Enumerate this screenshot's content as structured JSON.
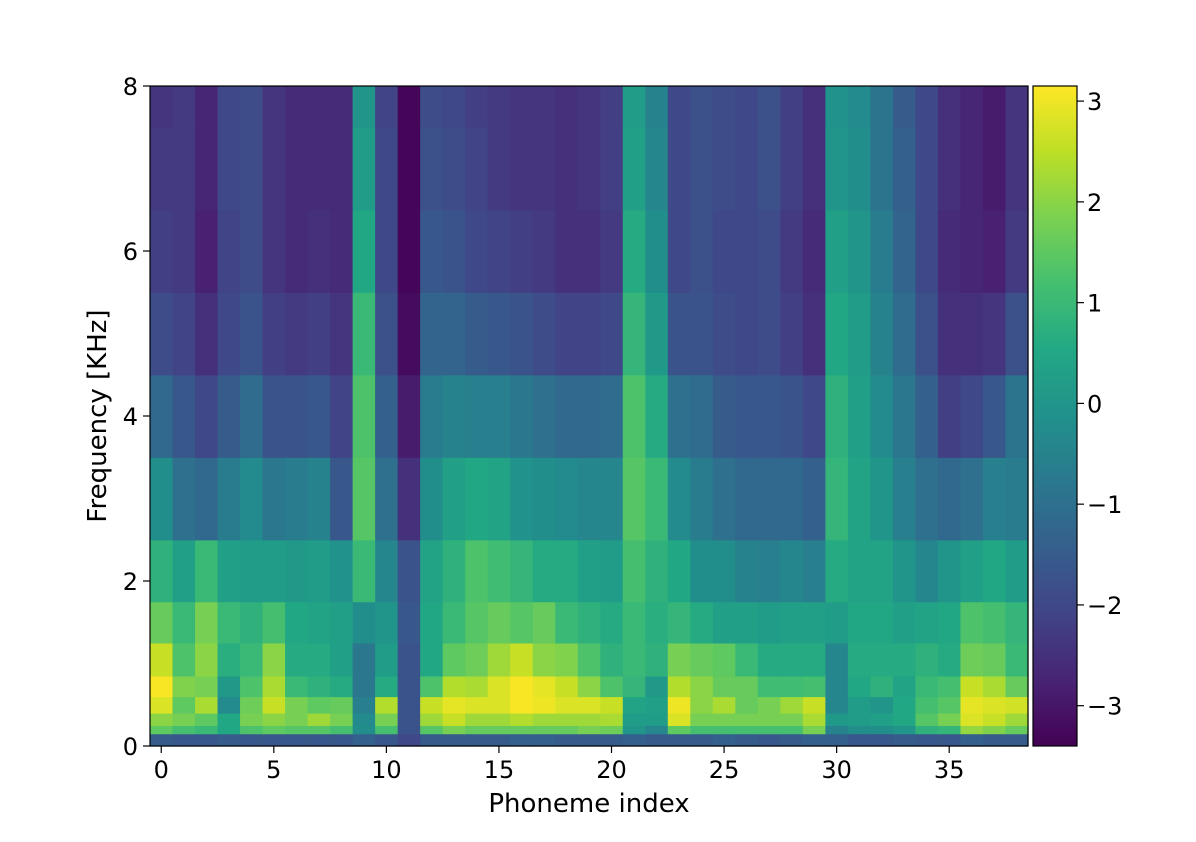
{
  "chart_data": {
    "type": "heatmap",
    "xlabel": "Phoneme index",
    "ylabel": "Frequency [KHz]",
    "x_range": [
      -0.5,
      38.5
    ],
    "y_range": [
      0,
      8
    ],
    "x_ticks": [
      0,
      5,
      10,
      15,
      20,
      25,
      30,
      35
    ],
    "x_tick_labels": [
      "0",
      "5",
      "10",
      "15",
      "20",
      "25",
      "30",
      "35"
    ],
    "y_ticks": [
      0,
      2,
      4,
      6,
      8
    ],
    "y_tick_labels": [
      "0",
      "2",
      "4",
      "6",
      "8"
    ],
    "colorbar": {
      "colormap": "viridis",
      "range": [
        -3.4,
        3.15
      ],
      "ticks": [
        -3,
        -2,
        -1,
        0,
        1,
        2,
        3
      ],
      "tick_labels": [
        "−3",
        "−2",
        "−1",
        "0",
        "1",
        "2",
        "3"
      ]
    },
    "grid": false,
    "phoneme_index": [
      0,
      1,
      2,
      3,
      4,
      5,
      6,
      7,
      8,
      9,
      10,
      11,
      12,
      13,
      14,
      15,
      16,
      17,
      18,
      19,
      20,
      21,
      22,
      23,
      24,
      25,
      26,
      27,
      28,
      29,
      30,
      31,
      32,
      33,
      34,
      35,
      36,
      37,
      38
    ],
    "frequency_rows_khz": [
      0.1,
      0.2,
      0.3,
      0.5,
      0.7,
      1.0,
      1.5,
      2.0,
      3.0,
      4.0,
      5.0,
      6.0,
      7.0,
      8.0
    ],
    "values": [
      [
        -1.5,
        -1.6,
        -1.6,
        -1.5,
        -1.6,
        -1.6,
        -1.6,
        -1.6,
        -1.6,
        -1.4,
        -1.6,
        -2.0,
        -1.5,
        -1.5,
        -1.5,
        -1.5,
        -1.4,
        -1.4,
        -1.5,
        -1.5,
        -1.5,
        -1.4,
        -1.5,
        -1.5,
        -1.5,
        -1.4,
        -1.5,
        -1.6,
        -1.5,
        -1.4,
        -1.4,
        -1.6,
        -1.6,
        -1.5,
        -1.6,
        -1.6,
        -1.4,
        -1.5,
        -1.5
      ],
      [
        1.5,
        1.2,
        1.0,
        0.5,
        1.3,
        1.5,
        1.4,
        1.4,
        1.2,
        -0.2,
        1.2,
        -1.7,
        1.4,
        1.8,
        1.6,
        1.6,
        1.6,
        1.6,
        1.6,
        1.8,
        1.7,
        0.0,
        -0.4,
        1.5,
        1.2,
        1.2,
        1.2,
        1.2,
        1.2,
        1.8,
        -0.5,
        -0.2,
        -0.2,
        0.0,
        0.8,
        0.9,
        2.1,
        1.9,
        1.6
      ],
      [
        2.0,
        1.8,
        1.5,
        0.5,
        1.8,
        2.0,
        1.8,
        2.2,
        1.8,
        -0.3,
        1.8,
        -1.7,
        2.2,
        2.6,
        2.2,
        2.2,
        2.4,
        2.2,
        2.2,
        2.2,
        2.3,
        0.2,
        0.2,
        2.8,
        1.8,
        1.8,
        1.8,
        1.8,
        1.8,
        2.3,
        0.1,
        0.2,
        0.3,
        0.5,
        1.4,
        1.8,
        2.8,
        2.6,
        2.2
      ],
      [
        2.8,
        1.5,
        2.3,
        -0.3,
        1.7,
        2.6,
        1.8,
        1.5,
        1.6,
        -0.6,
        2.4,
        -1.7,
        2.6,
        2.9,
        2.8,
        2.8,
        3.1,
        3.0,
        2.8,
        2.8,
        2.6,
        0.4,
        0.3,
        3.0,
        2.0,
        2.3,
        1.6,
        1.8,
        2.2,
        2.6,
        -0.4,
        0.2,
        0.0,
        0.5,
        1.2,
        1.4,
        2.9,
        2.8,
        2.7
      ],
      [
        3.1,
        1.9,
        1.8,
        0.1,
        1.3,
        2.3,
        1.0,
        0.8,
        0.6,
        -0.8,
        0.6,
        -1.7,
        1.3,
        2.4,
        2.3,
        2.8,
        3.1,
        2.9,
        2.6,
        2.0,
        1.3,
        0.9,
        0.1,
        2.4,
        2.0,
        1.6,
        1.6,
        1.1,
        1.1,
        1.2,
        -0.4,
        0.5,
        0.8,
        0.4,
        1.0,
        1.2,
        2.6,
        2.3,
        1.6
      ],
      [
        2.6,
        1.3,
        2.0,
        0.7,
        1.0,
        2.0,
        0.6,
        0.6,
        0.3,
        -0.8,
        0.2,
        -1.7,
        0.5,
        1.5,
        1.7,
        2.2,
        2.6,
        2.0,
        1.9,
        1.3,
        0.8,
        1.0,
        0.8,
        1.8,
        1.6,
        1.5,
        1.0,
        0.6,
        0.6,
        0.6,
        -0.4,
        0.6,
        0.6,
        0.6,
        0.8,
        0.6,
        1.7,
        1.6,
        1.0
      ],
      [
        1.6,
        1.0,
        1.8,
        1.0,
        0.8,
        1.2,
        0.5,
        0.4,
        0.3,
        -0.2,
        0.0,
        -1.6,
        0.5,
        1.0,
        1.4,
        1.6,
        1.4,
        1.6,
        1.0,
        0.8,
        0.6,
        1.0,
        0.7,
        0.9,
        0.6,
        0.3,
        0.3,
        0.2,
        0.3,
        0.3,
        0.2,
        0.5,
        0.5,
        0.3,
        0.4,
        0.5,
        1.3,
        1.2,
        0.9
      ],
      [
        0.8,
        0.3,
        1.0,
        0.3,
        0.2,
        0.2,
        0.1,
        0.2,
        -0.1,
        1.0,
        -0.4,
        -1.7,
        0.4,
        0.8,
        1.3,
        1.1,
        0.9,
        0.6,
        0.6,
        0.3,
        0.2,
        1.2,
        0.8,
        0.5,
        -0.2,
        -0.2,
        -0.5,
        -0.6,
        -0.4,
        -0.6,
        0.6,
        0.4,
        0.4,
        0.0,
        -0.4,
        0.0,
        0.3,
        0.5,
        0.2
      ],
      [
        -0.2,
        -1.0,
        -1.2,
        -0.7,
        -0.3,
        -0.8,
        -0.7,
        -0.5,
        -1.6,
        1.4,
        -1.0,
        -2.5,
        -0.2,
        0.3,
        0.5,
        0.4,
        -0.1,
        -0.2,
        -0.3,
        -0.4,
        -0.4,
        1.4,
        1.0,
        -0.3,
        -0.7,
        -1.0,
        -1.2,
        -1.2,
        -1.2,
        -1.4,
        0.9,
        0.4,
        0.0,
        -0.6,
        -1.0,
        -1.2,
        -1.0,
        -0.6,
        -0.7
      ],
      [
        -1.2,
        -1.6,
        -2.0,
        -1.5,
        -1.1,
        -1.7,
        -1.7,
        -1.6,
        -2.1,
        1.3,
        -1.4,
        -2.9,
        -0.7,
        -0.5,
        -0.6,
        -0.6,
        -0.8,
        -1.0,
        -1.2,
        -1.2,
        -1.1,
        1.3,
        0.6,
        -1.0,
        -1.1,
        -1.5,
        -1.6,
        -1.6,
        -1.7,
        -2.0,
        0.8,
        0.3,
        -0.3,
        -0.8,
        -1.4,
        -2.2,
        -2.0,
        -1.6,
        -0.9
      ],
      [
        -1.9,
        -2.1,
        -2.5,
        -2.0,
        -1.7,
        -2.2,
        -2.3,
        -2.2,
        -2.4,
        1.0,
        -1.8,
        -3.2,
        -1.3,
        -1.3,
        -1.5,
        -1.6,
        -1.7,
        -1.9,
        -2.1,
        -2.1,
        -2.0,
        0.9,
        0.1,
        -1.7,
        -1.7,
        -1.9,
        -2.0,
        -1.9,
        -2.2,
        -2.5,
        0.5,
        0.2,
        -0.5,
        -1.1,
        -1.8,
        -2.5,
        -2.5,
        -2.4,
        -1.8
      ],
      [
        -2.2,
        -2.3,
        -2.8,
        -2.1,
        -1.9,
        -2.4,
        -2.6,
        -2.5,
        -2.6,
        0.5,
        -2.0,
        -3.3,
        -1.6,
        -1.7,
        -2.0,
        -2.1,
        -2.2,
        -2.3,
        -2.5,
        -2.5,
        -2.3,
        0.6,
        -0.2,
        -2.0,
        -1.8,
        -2.0,
        -2.0,
        -1.9,
        -2.3,
        -2.6,
        0.3,
        0.0,
        -0.7,
        -1.3,
        -2.0,
        -2.6,
        -2.7,
        -2.8,
        -2.3
      ],
      [
        -2.3,
        -2.3,
        -2.7,
        -2.0,
        -1.9,
        -2.4,
        -2.6,
        -2.6,
        -2.6,
        0.2,
        -2.0,
        -3.3,
        -1.8,
        -1.9,
        -2.1,
        -2.3,
        -2.4,
        -2.4,
        -2.5,
        -2.4,
        -2.2,
        0.3,
        -0.4,
        -2.0,
        -1.8,
        -1.9,
        -2.0,
        -1.8,
        -2.2,
        -2.5,
        0.0,
        -0.2,
        -0.9,
        -1.4,
        -2.0,
        -2.5,
        -2.7,
        -2.9,
        -2.4
      ],
      [
        -2.4,
        -2.3,
        -2.7,
        -2.0,
        -1.9,
        -2.4,
        -2.6,
        -2.6,
        -2.6,
        0.0,
        -2.1,
        -3.3,
        -1.9,
        -2.0,
        -2.2,
        -2.3,
        -2.4,
        -2.4,
        -2.5,
        -2.4,
        -2.2,
        0.2,
        -0.5,
        -2.0,
        -1.8,
        -1.9,
        -2.0,
        -1.8,
        -2.2,
        -2.5,
        -0.1,
        -0.3,
        -0.9,
        -1.5,
        -2.0,
        -2.5,
        -2.7,
        -2.9,
        -2.4
      ]
    ]
  }
}
